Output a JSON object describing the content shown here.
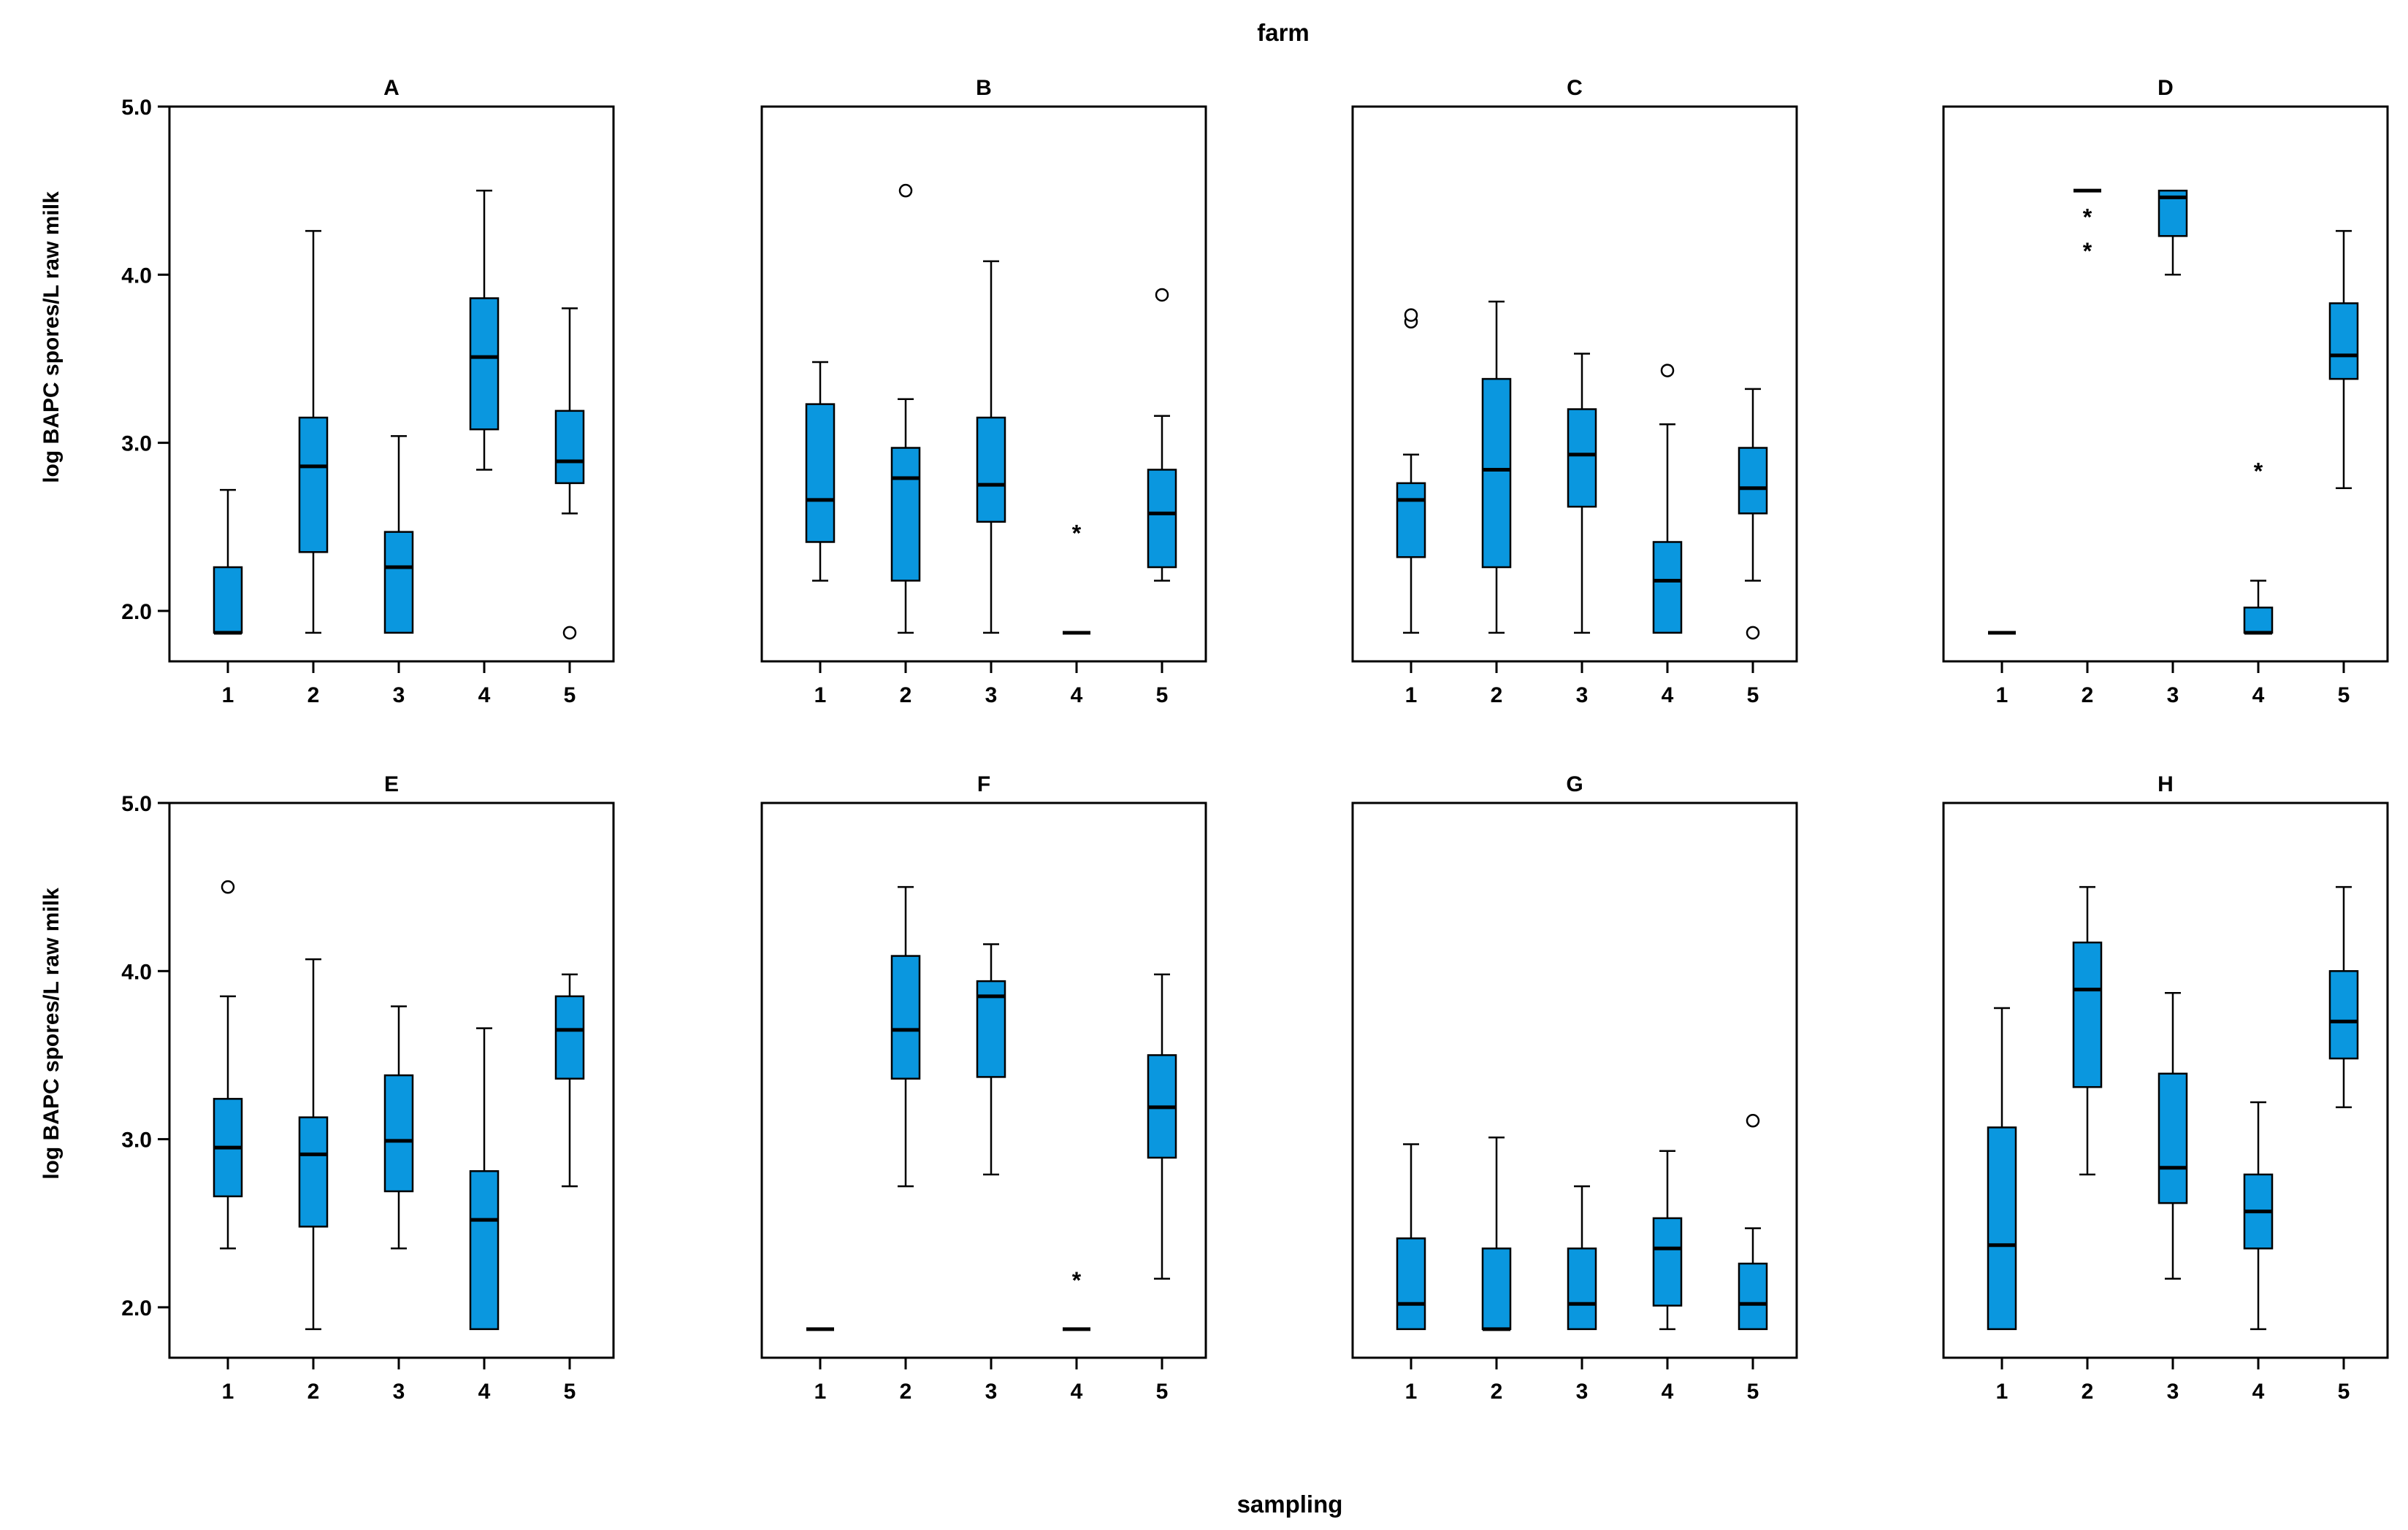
{
  "figure": {
    "title": "farm",
    "xlabel": "sampling",
    "ylabel": "log BAPC spores/L raw milk"
  },
  "colors": {
    "box_fill": "#0A97DF",
    "stroke": "#000000",
    "background": "#FFFFFF"
  },
  "chart_data": {
    "type": "boxplot",
    "title": "farm",
    "xlabel": "sampling",
    "ylabel": "log BAPC spores/L raw milk",
    "ylim": [
      1.7,
      5.0
    ],
    "yticks": [
      2.0,
      3.0,
      4.0,
      5.0
    ],
    "ytick_labels": [
      "2.0",
      "3.0",
      "4.0",
      "5.0"
    ],
    "categories": [
      "1",
      "2",
      "3",
      "4",
      "5"
    ],
    "panels": [
      {
        "name": "A",
        "boxes": [
          {
            "x": "1",
            "wlo": 1.87,
            "q1": 1.87,
            "med": 1.87,
            "q3": 2.26,
            "whi": 2.72,
            "outliers": []
          },
          {
            "x": "2",
            "wlo": 1.87,
            "q1": 2.35,
            "med": 2.86,
            "q3": 3.15,
            "whi": 4.26,
            "outliers": []
          },
          {
            "x": "3",
            "wlo": 1.87,
            "q1": 1.87,
            "med": 2.26,
            "q3": 2.47,
            "whi": 3.04,
            "outliers": []
          },
          {
            "x": "4",
            "wlo": 2.84,
            "q1": 3.08,
            "med": 3.51,
            "q3": 3.86,
            "whi": 4.5,
            "outliers": []
          },
          {
            "x": "5",
            "wlo": 2.58,
            "q1": 2.76,
            "med": 2.89,
            "q3": 3.19,
            "whi": 3.8,
            "outliers": [
              {
                "y": 1.87,
                "symbol": "circle"
              }
            ]
          }
        ]
      },
      {
        "name": "B",
        "boxes": [
          {
            "x": "1",
            "wlo": 2.18,
            "q1": 2.41,
            "med": 2.66,
            "q3": 3.23,
            "whi": 3.48,
            "outliers": []
          },
          {
            "x": "2",
            "wlo": 1.87,
            "q1": 2.18,
            "med": 2.79,
            "q3": 2.97,
            "whi": 3.26,
            "outliers": [
              {
                "y": 4.5,
                "symbol": "circle"
              }
            ]
          },
          {
            "x": "3",
            "wlo": 1.87,
            "q1": 2.53,
            "med": 2.75,
            "q3": 3.15,
            "whi": 4.08,
            "outliers": []
          },
          {
            "x": "4",
            "wlo": 1.87,
            "q1": 1.87,
            "med": 1.87,
            "q3": 1.87,
            "whi": 1.87,
            "outliers": [
              {
                "y": 2.47,
                "symbol": "star"
              }
            ]
          },
          {
            "x": "5",
            "wlo": 2.18,
            "q1": 2.26,
            "med": 2.58,
            "q3": 2.84,
            "whi": 3.16,
            "outliers": [
              {
                "y": 3.88,
                "symbol": "circle"
              }
            ]
          }
        ]
      },
      {
        "name": "C",
        "boxes": [
          {
            "x": "1",
            "wlo": 1.87,
            "q1": 2.32,
            "med": 2.66,
            "q3": 2.76,
            "whi": 2.93,
            "outliers": [
              {
                "y": 3.72,
                "symbol": "circle"
              },
              {
                "y": 3.76,
                "symbol": "circle"
              }
            ]
          },
          {
            "x": "2",
            "wlo": 1.87,
            "q1": 2.26,
            "med": 2.84,
            "q3": 3.38,
            "whi": 3.84,
            "outliers": []
          },
          {
            "x": "3",
            "wlo": 1.87,
            "q1": 2.62,
            "med": 2.93,
            "q3": 3.2,
            "whi": 3.53,
            "outliers": []
          },
          {
            "x": "4",
            "wlo": 1.87,
            "q1": 1.87,
            "med": 2.18,
            "q3": 2.41,
            "whi": 3.11,
            "outliers": [
              {
                "y": 3.43,
                "symbol": "circle"
              }
            ]
          },
          {
            "x": "5",
            "wlo": 2.18,
            "q1": 2.58,
            "med": 2.73,
            "q3": 2.97,
            "whi": 3.32,
            "outliers": [
              {
                "y": 1.87,
                "symbol": "circle"
              }
            ]
          }
        ]
      },
      {
        "name": "D",
        "boxes": [
          {
            "x": "1",
            "wlo": 1.87,
            "q1": 1.87,
            "med": 1.87,
            "q3": 1.87,
            "whi": 1.87,
            "outliers": []
          },
          {
            "x": "2",
            "wlo": 4.5,
            "q1": 4.5,
            "med": 4.5,
            "q3": 4.5,
            "whi": 4.5,
            "outliers": [
              {
                "y": 4.35,
                "symbol": "star"
              },
              {
                "y": 4.15,
                "symbol": "star"
              }
            ]
          },
          {
            "x": "3",
            "wlo": 4.0,
            "q1": 4.23,
            "med": 4.46,
            "q3": 4.5,
            "whi": 4.5,
            "outliers": []
          },
          {
            "x": "4",
            "wlo": 1.87,
            "q1": 1.87,
            "med": 1.87,
            "q3": 2.02,
            "whi": 2.18,
            "outliers": [
              {
                "y": 2.84,
                "symbol": "star"
              }
            ]
          },
          {
            "x": "5",
            "wlo": 2.73,
            "q1": 3.38,
            "med": 3.52,
            "q3": 3.83,
            "whi": 4.26,
            "outliers": []
          }
        ]
      },
      {
        "name": "E",
        "boxes": [
          {
            "x": "1",
            "wlo": 2.35,
            "q1": 2.66,
            "med": 2.95,
            "q3": 3.24,
            "whi": 3.85,
            "outliers": [
              {
                "y": 4.5,
                "symbol": "circle"
              }
            ]
          },
          {
            "x": "2",
            "wlo": 1.87,
            "q1": 2.48,
            "med": 2.91,
            "q3": 3.13,
            "whi": 4.07,
            "outliers": []
          },
          {
            "x": "3",
            "wlo": 2.35,
            "q1": 2.69,
            "med": 2.99,
            "q3": 3.38,
            "whi": 3.79,
            "outliers": []
          },
          {
            "x": "4",
            "wlo": 1.87,
            "q1": 1.87,
            "med": 2.52,
            "q3": 2.81,
            "whi": 3.66,
            "outliers": []
          },
          {
            "x": "5",
            "wlo": 2.72,
            "q1": 3.36,
            "med": 3.65,
            "q3": 3.85,
            "whi": 3.98,
            "outliers": []
          }
        ]
      },
      {
        "name": "F",
        "boxes": [
          {
            "x": "1",
            "wlo": 1.87,
            "q1": 1.87,
            "med": 1.87,
            "q3": 1.87,
            "whi": 1.87,
            "outliers": []
          },
          {
            "x": "2",
            "wlo": 2.72,
            "q1": 3.36,
            "med": 3.65,
            "q3": 4.09,
            "whi": 4.5,
            "outliers": []
          },
          {
            "x": "3",
            "wlo": 2.79,
            "q1": 3.37,
            "med": 3.85,
            "q3": 3.94,
            "whi": 4.16,
            "outliers": []
          },
          {
            "x": "4",
            "wlo": 1.87,
            "q1": 1.87,
            "med": 1.87,
            "q3": 1.87,
            "whi": 1.87,
            "outliers": [
              {
                "y": 2.17,
                "symbol": "star"
              }
            ]
          },
          {
            "x": "5",
            "wlo": 2.17,
            "q1": 2.89,
            "med": 3.19,
            "q3": 3.5,
            "whi": 3.98,
            "outliers": []
          }
        ]
      },
      {
        "name": "G",
        "boxes": [
          {
            "x": "1",
            "wlo": 1.87,
            "q1": 1.87,
            "med": 2.02,
            "q3": 2.41,
            "whi": 2.97,
            "outliers": []
          },
          {
            "x": "2",
            "wlo": 1.87,
            "q1": 1.87,
            "med": 1.87,
            "q3": 2.35,
            "whi": 3.01,
            "outliers": []
          },
          {
            "x": "3",
            "wlo": 1.87,
            "q1": 1.87,
            "med": 2.02,
            "q3": 2.35,
            "whi": 2.72,
            "outliers": []
          },
          {
            "x": "4",
            "wlo": 1.87,
            "q1": 2.01,
            "med": 2.35,
            "q3": 2.53,
            "whi": 2.93,
            "outliers": []
          },
          {
            "x": "5",
            "wlo": 1.87,
            "q1": 1.87,
            "med": 2.02,
            "q3": 2.26,
            "whi": 2.47,
            "outliers": [
              {
                "y": 3.11,
                "symbol": "circle"
              }
            ]
          }
        ]
      },
      {
        "name": "H",
        "boxes": [
          {
            "x": "1",
            "wlo": 1.87,
            "q1": 1.87,
            "med": 2.37,
            "q3": 3.07,
            "whi": 3.78,
            "outliers": []
          },
          {
            "x": "2",
            "wlo": 2.79,
            "q1": 3.31,
            "med": 3.89,
            "q3": 4.17,
            "whi": 4.5,
            "outliers": []
          },
          {
            "x": "3",
            "wlo": 2.17,
            "q1": 2.62,
            "med": 2.83,
            "q3": 3.39,
            "whi": 3.87,
            "outliers": []
          },
          {
            "x": "4",
            "wlo": 1.87,
            "q1": 2.35,
            "med": 2.57,
            "q3": 2.79,
            "whi": 3.22,
            "outliers": []
          },
          {
            "x": "5",
            "wlo": 3.19,
            "q1": 3.48,
            "med": 3.7,
            "q3": 4.0,
            "whi": 4.5,
            "outliers": []
          }
        ]
      }
    ]
  }
}
